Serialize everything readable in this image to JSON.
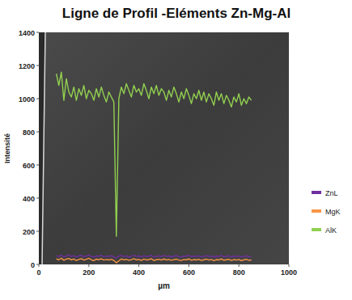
{
  "chart_data": {
    "type": "line",
    "title": "Ligne de Profil -Eléments Zn-Mg-Al",
    "x_label": "µm",
    "y_label": "Intensité",
    "xlim": [
      0,
      1000
    ],
    "xticks": [
      0,
      200,
      400,
      600,
      800,
      1000
    ],
    "ylim": [
      0,
      1400
    ],
    "yticks": [
      0,
      200,
      400,
      600,
      800,
      1000,
      1200,
      1400
    ],
    "grid": false,
    "legend": "right",
    "x": [
      70,
      80,
      90,
      100,
      110,
      120,
      130,
      140,
      150,
      160,
      170,
      180,
      190,
      200,
      210,
      220,
      230,
      240,
      250,
      260,
      270,
      280,
      290,
      300,
      310,
      320,
      330,
      340,
      350,
      360,
      370,
      380,
      390,
      400,
      410,
      420,
      430,
      440,
      450,
      460,
      470,
      480,
      490,
      500,
      510,
      520,
      530,
      540,
      550,
      560,
      570,
      580,
      590,
      600,
      610,
      620,
      630,
      640,
      650,
      660,
      670,
      680,
      690,
      700,
      710,
      720,
      730,
      740,
      750,
      760,
      770,
      780,
      790,
      800,
      810,
      820,
      830,
      840,
      850
    ],
    "series": [
      {
        "name": "ZnL",
        "color": "#7030a0",
        "values": [
          52,
          48,
          56,
          45,
          50,
          58,
          47,
          53,
          44,
          51,
          55,
          46,
          50,
          57,
          48,
          43,
          52,
          49,
          55,
          46,
          51,
          47,
          53,
          45,
          38,
          50,
          54,
          47,
          52,
          44,
          49,
          56,
          48,
          51,
          45,
          53,
          47,
          50,
          55,
          44,
          49,
          52,
          46,
          54,
          48,
          51,
          45,
          50,
          53,
          47,
          44,
          51,
          49,
          55,
          46,
          50,
          48,
          52,
          45,
          49,
          53,
          47,
          51,
          44,
          50,
          48,
          54,
          46,
          49,
          52,
          45,
          50,
          47,
          51,
          44,
          49,
          52,
          46,
          48
        ]
      },
      {
        "name": "MgK",
        "color": "#f79646",
        "values": [
          34,
          28,
          38,
          25,
          32,
          36,
          27,
          33,
          24,
          30,
          35,
          26,
          31,
          37,
          28,
          23,
          32,
          29,
          34,
          26,
          30,
          27,
          31,
          24,
          10,
          22,
          33,
          27,
          31,
          25,
          29,
          35,
          28,
          30,
          24,
          32,
          27,
          29,
          34,
          24,
          28,
          31,
          26,
          33,
          27,
          30,
          25,
          29,
          32,
          26,
          24,
          30,
          28,
          33,
          25,
          29,
          27,
          31,
          24,
          28,
          32,
          26,
          30,
          23,
          29,
          27,
          33,
          25,
          28,
          31,
          24,
          29,
          26,
          30,
          23,
          28,
          31,
          25,
          27
        ]
      },
      {
        "name": "AlK",
        "color": "#92d050",
        "values": [
          1150,
          1080,
          1160,
          990,
          1120,
          1040,
          1010,
          1070,
          990,
          1060,
          1020,
          1080,
          1000,
          1050,
          1030,
          990,
          1060,
          1010,
          1070,
          1020,
          980,
          1040,
          1010,
          980,
          170,
          1000,
          1070,
          1030,
          1090,
          1050,
          1010,
          1080,
          1040,
          1060,
          1020,
          1090,
          1050,
          1000,
          1070,
          1030,
          1080,
          1020,
          1060,
          1040,
          990,
          1050,
          1010,
          1070,
          1030,
          980,
          1040,
          1000,
          1060,
          1020,
          970,
          1030,
          1000,
          1050,
          990,
          1040,
          980,
          1030,
          1000,
          960,
          1040,
          990,
          1030,
          970,
          1020,
          990,
          950,
          1010,
          980,
          1030,
          960,
          1000,
          970,
          1010,
          990
        ]
      }
    ]
  }
}
